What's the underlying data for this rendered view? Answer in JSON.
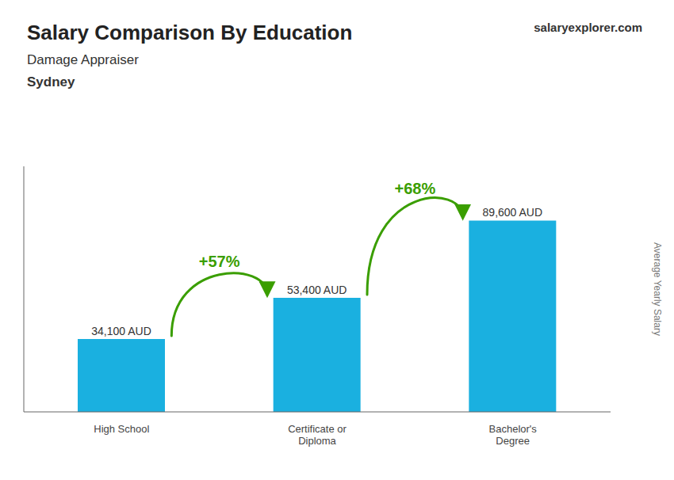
{
  "chart_data": {
    "type": "bar",
    "title": "Salary Comparison By Education",
    "subtitle": "Damage Appraiser",
    "annotations": [
      {
        "text": "Sydney"
      },
      {
        "text": "salaryexplorer.com"
      },
      {
        "text": "+57%",
        "from": "High School",
        "to": "Certificate or\nDiploma",
        "color": "#3a9e00"
      },
      {
        "text": "+68%",
        "from": "Certificate or\nDiploma",
        "to": "Bachelor's\nDegree",
        "color": "#3a9e00"
      }
    ],
    "ylabel": "Average Yearly Salary",
    "categories": [
      "High School",
      "Certificate or\nDiploma",
      "Bachelor's\nDegree"
    ],
    "values": [
      34100,
      53400,
      89600
    ],
    "value_labels": [
      "34,100 AUD",
      "53,400 AUD",
      "89,600 AUD"
    ],
    "data_labels": true,
    "color": "#1ab0e0",
    "ylim": [
      0,
      115000
    ],
    "yticks": [],
    "tick_labels": "x",
    "grid": false
  }
}
